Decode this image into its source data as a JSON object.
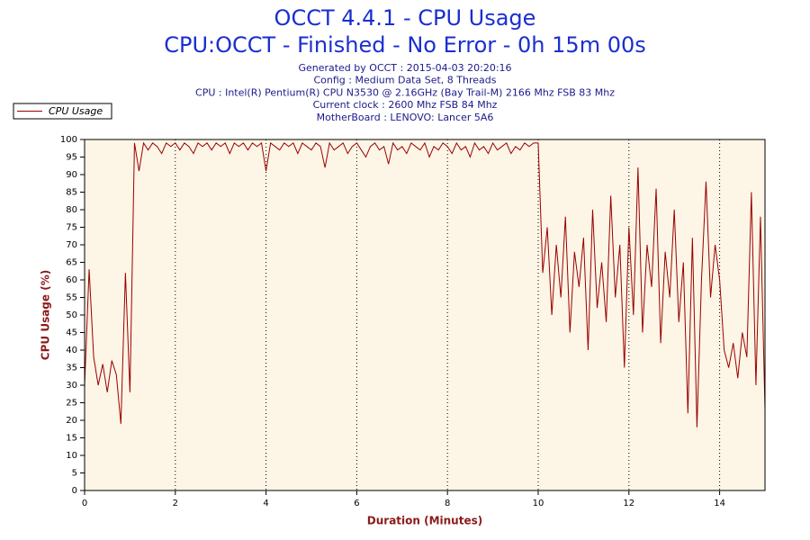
{
  "chart_data": {
    "type": "line",
    "title": "OCCT 4.4.1 - CPU Usage",
    "subtitle": "CPU:OCCT - Finished - No Error - 0h 15m 00s",
    "info": [
      "Generated by OCCT : 2015-04-03 20:20:16",
      "Config : Medium Data Set, 8 Threads",
      "CPU : Intel(R) Pentium(R) CPU N3530 @ 2.16GHz (Bay Trail-M) 2166 Mhz FSB 83 Mhz",
      "Current clock : 2600 Mhz FSB 84 Mhz",
      "MotherBoard : LENOVO: Lancer 5A6"
    ],
    "x_label": "Duration (Minutes)",
    "y_label": "CPU Usage (%)",
    "x": [
      0,
      0.1,
      0.2,
      0.3,
      0.4,
      0.5,
      0.6,
      0.7,
      0.8,
      0.9,
      1,
      1.1,
      1.2,
      1.3,
      1.4,
      1.5,
      1.6,
      1.7,
      1.8,
      1.9,
      2,
      2.1,
      2.2,
      2.3,
      2.4,
      2.5,
      2.6,
      2.7,
      2.8,
      2.9,
      3,
      3.1,
      3.2,
      3.3,
      3.4,
      3.5,
      3.6,
      3.7,
      3.8,
      3.9,
      4,
      4.1,
      4.2,
      4.3,
      4.4,
      4.5,
      4.6,
      4.7,
      4.8,
      4.9,
      5,
      5.1,
      5.2,
      5.3,
      5.4,
      5.5,
      5.6,
      5.7,
      5.8,
      5.9,
      6,
      6.1,
      6.2,
      6.3,
      6.4,
      6.5,
      6.6,
      6.7,
      6.8,
      6.9,
      7,
      7.1,
      7.2,
      7.3,
      7.4,
      7.5,
      7.6,
      7.7,
      7.8,
      7.9,
      8,
      8.1,
      8.2,
      8.3,
      8.4,
      8.5,
      8.6,
      8.7,
      8.8,
      8.9,
      9,
      9.1,
      9.2,
      9.3,
      9.4,
      9.5,
      9.6,
      9.7,
      9.8,
      9.9,
      10,
      10.1,
      10.2,
      10.3,
      10.4,
      10.5,
      10.6,
      10.7,
      10.8,
      10.9,
      11,
      11.1,
      11.2,
      11.3,
      11.4,
      11.5,
      11.6,
      11.7,
      11.8,
      11.9,
      12,
      12.1,
      12.2,
      12.3,
      12.4,
      12.5,
      12.6,
      12.7,
      12.8,
      12.9,
      13,
      13.1,
      13.2,
      13.3,
      13.4,
      13.5,
      13.6,
      13.7,
      13.8,
      13.9,
      14,
      14.1,
      14.2,
      14.3,
      14.4,
      14.5,
      14.6,
      14.7,
      14.8,
      14.9,
      15
    ],
    "series": [
      {
        "name": "CPU Usage",
        "color": "#990000",
        "values": [
          30,
          63,
          38,
          30,
          36,
          28,
          37,
          33,
          19,
          62,
          28,
          99,
          91,
          99,
          97,
          99,
          98,
          96,
          99,
          98,
          99,
          97,
          99,
          98,
          96,
          99,
          98,
          99,
          97,
          99,
          98,
          99,
          96,
          99,
          98,
          99,
          97,
          99,
          98,
          99,
          91,
          99,
          98,
          97,
          99,
          98,
          99,
          96,
          99,
          98,
          97,
          99,
          98,
          92,
          99,
          97,
          98,
          99,
          96,
          98,
          99,
          97,
          95,
          98,
          99,
          97,
          98,
          93,
          99,
          97,
          98,
          96,
          99,
          98,
          97,
          99,
          95,
          98,
          97,
          99,
          98,
          96,
          99,
          97,
          98,
          95,
          99,
          97,
          98,
          96,
          99,
          97,
          98,
          99,
          96,
          98,
          97,
          99,
          98,
          99,
          99,
          62,
          75,
          50,
          70,
          55,
          78,
          45,
          68,
          58,
          72,
          40,
          80,
          52,
          65,
          48,
          84,
          55,
          70,
          35,
          75,
          50,
          92,
          45,
          70,
          58,
          86,
          42,
          68,
          55,
          80,
          48,
          65,
          22,
          72,
          18,
          60,
          88,
          55,
          70,
          60,
          40,
          35,
          42,
          32,
          45,
          38,
          85,
          30,
          78,
          23
        ]
      }
    ],
    "xlim": [
      0,
      15
    ],
    "xticks": [
      0,
      2,
      4,
      6,
      8,
      10,
      12,
      14
    ],
    "ylim": [
      0,
      100
    ],
    "yticks": [
      0,
      5,
      10,
      15,
      20,
      25,
      30,
      35,
      40,
      45,
      50,
      55,
      60,
      65,
      70,
      75,
      80,
      85,
      90,
      95,
      100
    ],
    "grid": "x",
    "legend": "top-left",
    "background": "#fdf5e6"
  }
}
